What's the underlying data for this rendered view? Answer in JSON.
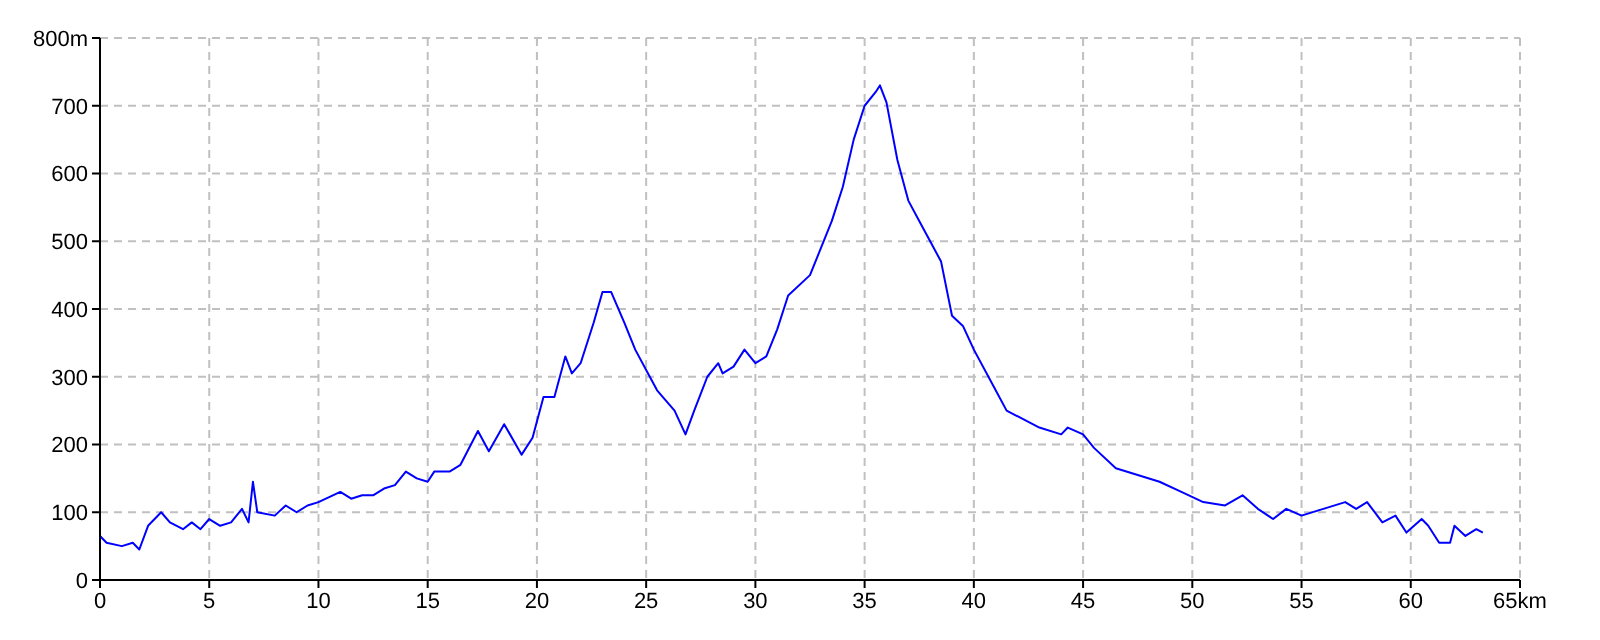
{
  "chart_data": {
    "type": "line",
    "x": [
      0,
      0.3,
      1,
      1.5,
      1.8,
      2.2,
      2.8,
      3.2,
      3.8,
      4.2,
      4.6,
      5,
      5.5,
      6,
      6.5,
      6.8,
      7,
      7.2,
      8,
      8.5,
      9,
      9.5,
      10,
      11,
      11.5,
      12,
      12.5,
      13,
      13.5,
      14,
      14.5,
      15,
      15.3,
      16,
      16.5,
      17.3,
      17.8,
      18.5,
      19.3,
      19.8,
      20.3,
      20.8,
      21.3,
      21.6,
      22,
      22.6,
      23,
      23.4,
      24,
      24.5,
      25,
      25.5,
      26.3,
      26.8,
      27.2,
      27.8,
      28.3,
      28.5,
      29,
      29.5,
      30,
      30.5,
      31,
      31.5,
      32.5,
      33.5,
      34,
      34.5,
      35,
      35.5,
      35.7,
      36,
      36.5,
      37,
      37.5,
      38,
      38.5,
      39,
      39.5,
      40,
      41,
      41.5,
      43,
      44,
      44.3,
      45,
      45.5,
      46.5,
      47.5,
      48.5,
      49.5,
      50.5,
      51.5,
      52.3,
      53,
      53.7,
      54.3,
      55,
      56,
      57,
      57.5,
      58,
      58.7,
      59.3,
      59.8,
      60.5,
      60.8,
      61.3,
      61.8,
      62,
      62.5,
      63,
      63.3
    ],
    "series": [
      {
        "color": "#0000ff",
        "values": [
          65,
          55,
          50,
          55,
          45,
          80,
          100,
          85,
          75,
          85,
          75,
          90,
          80,
          85,
          105,
          85,
          145,
          100,
          95,
          110,
          100,
          110,
          115,
          130,
          120,
          125,
          125,
          135,
          140,
          160,
          150,
          145,
          160,
          160,
          170,
          220,
          190,
          230,
          185,
          210,
          270,
          270,
          330,
          305,
          320,
          380,
          425,
          425,
          380,
          340,
          310,
          280,
          250,
          215,
          250,
          300,
          320,
          305,
          315,
          340,
          320,
          330,
          370,
          420,
          450,
          530,
          580,
          650,
          700,
          720,
          730,
          705,
          620,
          560,
          530,
          500,
          470,
          390,
          375,
          340,
          280,
          250,
          225,
          215,
          225,
          215,
          195,
          165,
          155,
          145,
          130,
          115,
          110,
          125,
          105,
          90,
          105,
          95,
          105,
          115,
          105,
          115,
          85,
          95,
          70,
          90,
          80,
          55,
          55,
          80,
          65,
          75,
          70
        ]
      }
    ],
    "xlim": [
      0,
      65
    ],
    "xticks": [
      0,
      5,
      10,
      15,
      20,
      25,
      30,
      35,
      40,
      45,
      50,
      55,
      60,
      {
        "value": 65,
        "label": "65km"
      }
    ],
    "ylim": [
      0,
      800
    ],
    "yticks": [
      0,
      100,
      200,
      300,
      400,
      500,
      600,
      700,
      {
        "value": 800,
        "label": "800m"
      }
    ],
    "grid": true,
    "legend": false
  }
}
